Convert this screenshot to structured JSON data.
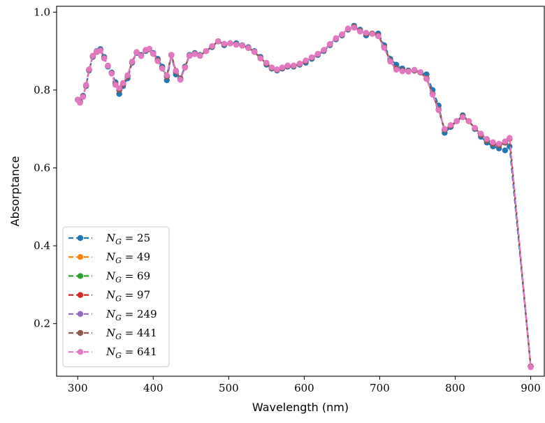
{
  "chart_data": {
    "type": "line",
    "xlabel": "Wavelength (nm)",
    "ylabel": "Absorptance",
    "xlim": [
      272,
      918
    ],
    "ylim": [
      0.065,
      1.015
    ],
    "xticks": [
      "300",
      "400",
      "500",
      "600",
      "700",
      "800",
      "900"
    ],
    "yticks": [
      "0.2",
      "0.4",
      "0.6",
      "0.8",
      "1.0"
    ],
    "grid": false,
    "legend_position": "lower-left",
    "line_style": "dashed with circle markers",
    "x": [
      300,
      303,
      307,
      311,
      315,
      320,
      325,
      330,
      335,
      340,
      345,
      350,
      355,
      360,
      366,
      372,
      378,
      384,
      390,
      395,
      400,
      406,
      412,
      418,
      424,
      430,
      436,
      442,
      448,
      455,
      462,
      470,
      478,
      486,
      494,
      502,
      510,
      518,
      526,
      534,
      542,
      550,
      557,
      564,
      571,
      578,
      586,
      594,
      602,
      610,
      618,
      626,
      634,
      642,
      650,
      658,
      666,
      674,
      682,
      690,
      698,
      706,
      714,
      722,
      730,
      738,
      746,
      754,
      762,
      770,
      778,
      786,
      794,
      802,
      810,
      818,
      826,
      834,
      842,
      850,
      858,
      866,
      872,
      900
    ],
    "series": [
      {
        "name": "N_G = 25",
        "label_math": "N",
        "label_sub": "G",
        "label_rhs": "= 25",
        "color": "#1f77b4",
        "values": [
          0.775,
          0.77,
          0.785,
          0.81,
          0.85,
          0.885,
          0.9,
          0.905,
          0.885,
          0.86,
          0.845,
          0.82,
          0.79,
          0.81,
          0.83,
          0.87,
          0.895,
          0.89,
          0.9,
          0.905,
          0.895,
          0.88,
          0.86,
          0.825,
          0.89,
          0.84,
          0.83,
          0.86,
          0.89,
          0.895,
          0.89,
          0.9,
          0.91,
          0.925,
          0.915,
          0.92,
          0.92,
          0.915,
          0.91,
          0.9,
          0.885,
          0.865,
          0.855,
          0.85,
          0.855,
          0.86,
          0.86,
          0.865,
          0.87,
          0.88,
          0.89,
          0.9,
          0.915,
          0.93,
          0.94,
          0.955,
          0.965,
          0.955,
          0.94,
          0.945,
          0.945,
          0.915,
          0.88,
          0.865,
          0.855,
          0.85,
          0.85,
          0.845,
          0.84,
          0.8,
          0.76,
          0.69,
          0.705,
          0.72,
          0.735,
          0.72,
          0.7,
          0.68,
          0.665,
          0.655,
          0.65,
          0.645,
          0.655,
          0.09
        ]
      },
      {
        "name": "N_G = 49",
        "label_math": "N",
        "label_sub": "G",
        "label_rhs": "= 49",
        "color": "#ff7f0e",
        "values": [
          0.775,
          0.768,
          0.783,
          0.812,
          0.852,
          0.887,
          0.898,
          0.902,
          0.882,
          0.862,
          0.843,
          0.815,
          0.8,
          0.815,
          0.835,
          0.872,
          0.897,
          0.888,
          0.902,
          0.905,
          0.893,
          0.876,
          0.856,
          0.835,
          0.89,
          0.848,
          0.828,
          0.858,
          0.888,
          0.893,
          0.888,
          0.9,
          0.912,
          0.925,
          0.918,
          0.92,
          0.917,
          0.914,
          0.908,
          0.898,
          0.882,
          0.868,
          0.857,
          0.852,
          0.857,
          0.862,
          0.862,
          0.867,
          0.874,
          0.883,
          0.892,
          0.902,
          0.917,
          0.932,
          0.942,
          0.957,
          0.962,
          0.952,
          0.945,
          0.945,
          0.94,
          0.91,
          0.875,
          0.855,
          0.85,
          0.848,
          0.85,
          0.845,
          0.83,
          0.79,
          0.75,
          0.698,
          0.708,
          0.72,
          0.732,
          0.72,
          0.702,
          0.685,
          0.67,
          0.662,
          0.658,
          0.665,
          0.675,
          0.09
        ]
      },
      {
        "name": "N_G = 69",
        "label_math": "N",
        "label_sub": "G",
        "label_rhs": "= 69",
        "color": "#2ca02c",
        "values": [
          0.775,
          0.768,
          0.783,
          0.812,
          0.852,
          0.887,
          0.898,
          0.902,
          0.882,
          0.862,
          0.843,
          0.815,
          0.8,
          0.815,
          0.835,
          0.872,
          0.897,
          0.888,
          0.902,
          0.905,
          0.893,
          0.876,
          0.856,
          0.835,
          0.89,
          0.848,
          0.828,
          0.858,
          0.888,
          0.893,
          0.888,
          0.9,
          0.912,
          0.925,
          0.918,
          0.92,
          0.917,
          0.914,
          0.908,
          0.898,
          0.882,
          0.868,
          0.857,
          0.852,
          0.857,
          0.862,
          0.862,
          0.867,
          0.874,
          0.883,
          0.892,
          0.902,
          0.917,
          0.932,
          0.942,
          0.957,
          0.962,
          0.952,
          0.945,
          0.945,
          0.94,
          0.91,
          0.875,
          0.855,
          0.85,
          0.848,
          0.85,
          0.845,
          0.83,
          0.79,
          0.75,
          0.698,
          0.708,
          0.72,
          0.732,
          0.72,
          0.702,
          0.685,
          0.67,
          0.662,
          0.658,
          0.665,
          0.675,
          0.09
        ]
      },
      {
        "name": "N_G = 97",
        "label_math": "N",
        "label_sub": "G",
        "label_rhs": "= 97",
        "color": "#d62728",
        "values": [
          0.775,
          0.768,
          0.783,
          0.812,
          0.852,
          0.887,
          0.898,
          0.902,
          0.882,
          0.862,
          0.843,
          0.815,
          0.8,
          0.815,
          0.835,
          0.872,
          0.897,
          0.888,
          0.902,
          0.905,
          0.893,
          0.876,
          0.856,
          0.835,
          0.89,
          0.848,
          0.828,
          0.858,
          0.888,
          0.893,
          0.888,
          0.9,
          0.912,
          0.925,
          0.918,
          0.92,
          0.917,
          0.914,
          0.908,
          0.898,
          0.882,
          0.868,
          0.857,
          0.852,
          0.857,
          0.862,
          0.862,
          0.867,
          0.874,
          0.883,
          0.892,
          0.902,
          0.917,
          0.932,
          0.942,
          0.957,
          0.962,
          0.952,
          0.945,
          0.945,
          0.94,
          0.91,
          0.875,
          0.855,
          0.85,
          0.848,
          0.85,
          0.845,
          0.83,
          0.79,
          0.75,
          0.698,
          0.708,
          0.72,
          0.732,
          0.72,
          0.702,
          0.685,
          0.67,
          0.662,
          0.658,
          0.665,
          0.675,
          0.09
        ]
      },
      {
        "name": "N_G = 249",
        "label_math": "N",
        "label_sub": "G",
        "label_rhs": "= 249",
        "color": "#9467bd",
        "values": [
          0.775,
          0.768,
          0.783,
          0.812,
          0.852,
          0.887,
          0.898,
          0.902,
          0.882,
          0.862,
          0.843,
          0.815,
          0.8,
          0.815,
          0.835,
          0.872,
          0.897,
          0.888,
          0.902,
          0.905,
          0.893,
          0.876,
          0.856,
          0.835,
          0.89,
          0.848,
          0.828,
          0.858,
          0.888,
          0.893,
          0.888,
          0.9,
          0.912,
          0.925,
          0.918,
          0.92,
          0.917,
          0.914,
          0.908,
          0.898,
          0.882,
          0.868,
          0.857,
          0.852,
          0.857,
          0.862,
          0.862,
          0.867,
          0.874,
          0.883,
          0.892,
          0.902,
          0.917,
          0.932,
          0.942,
          0.957,
          0.962,
          0.952,
          0.945,
          0.945,
          0.94,
          0.91,
          0.875,
          0.855,
          0.85,
          0.848,
          0.85,
          0.845,
          0.83,
          0.79,
          0.75,
          0.698,
          0.708,
          0.72,
          0.732,
          0.72,
          0.702,
          0.685,
          0.67,
          0.662,
          0.658,
          0.665,
          0.675,
          0.09
        ]
      },
      {
        "name": "N_G = 441",
        "label_math": "N",
        "label_sub": "G",
        "label_rhs": "= 441",
        "color": "#8c564b",
        "values": [
          0.775,
          0.768,
          0.783,
          0.812,
          0.852,
          0.887,
          0.898,
          0.902,
          0.882,
          0.862,
          0.843,
          0.815,
          0.8,
          0.815,
          0.835,
          0.872,
          0.897,
          0.888,
          0.902,
          0.905,
          0.893,
          0.876,
          0.856,
          0.835,
          0.89,
          0.848,
          0.828,
          0.858,
          0.888,
          0.893,
          0.888,
          0.9,
          0.912,
          0.925,
          0.918,
          0.92,
          0.917,
          0.914,
          0.908,
          0.898,
          0.882,
          0.868,
          0.857,
          0.852,
          0.857,
          0.862,
          0.862,
          0.867,
          0.874,
          0.883,
          0.892,
          0.902,
          0.917,
          0.932,
          0.942,
          0.957,
          0.962,
          0.952,
          0.945,
          0.945,
          0.94,
          0.91,
          0.875,
          0.855,
          0.85,
          0.848,
          0.85,
          0.845,
          0.83,
          0.79,
          0.75,
          0.698,
          0.708,
          0.72,
          0.732,
          0.72,
          0.702,
          0.685,
          0.67,
          0.662,
          0.658,
          0.665,
          0.675,
          0.09
        ]
      },
      {
        "name": "N_G = 641",
        "label_math": "N",
        "label_sub": "G",
        "label_rhs": "= 641",
        "color": "#e377c2",
        "values": [
          0.775,
          0.767,
          0.782,
          0.813,
          0.853,
          0.888,
          0.899,
          0.901,
          0.881,
          0.862,
          0.842,
          0.813,
          0.805,
          0.818,
          0.838,
          0.873,
          0.897,
          0.887,
          0.903,
          0.906,
          0.893,
          0.874,
          0.855,
          0.838,
          0.89,
          0.85,
          0.826,
          0.857,
          0.888,
          0.892,
          0.888,
          0.9,
          0.913,
          0.925,
          0.919,
          0.92,
          0.916,
          0.914,
          0.908,
          0.898,
          0.881,
          0.87,
          0.858,
          0.853,
          0.858,
          0.863,
          0.863,
          0.868,
          0.876,
          0.884,
          0.893,
          0.903,
          0.918,
          0.933,
          0.943,
          0.958,
          0.96,
          0.95,
          0.947,
          0.944,
          0.938,
          0.908,
          0.873,
          0.852,
          0.848,
          0.847,
          0.852,
          0.846,
          0.828,
          0.788,
          0.748,
          0.7,
          0.71,
          0.72,
          0.73,
          0.72,
          0.703,
          0.688,
          0.674,
          0.666,
          0.662,
          0.668,
          0.677,
          0.088
        ]
      }
    ]
  }
}
